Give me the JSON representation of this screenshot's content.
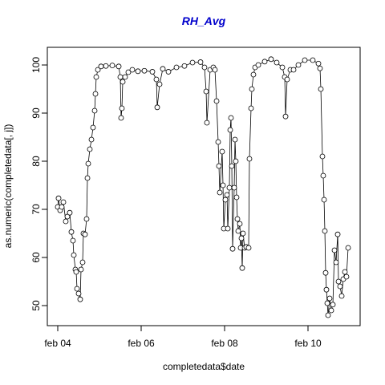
{
  "chart_data": {
    "type": "line",
    "title": "RH_Avg",
    "title_color": "#0000cc",
    "x_label": "completedata$date",
    "y_label": "as.numeric(completedata[, j])",
    "xlim": [
      3.75,
      11.25
    ],
    "ylim": [
      45.83,
      103.67
    ],
    "xticks": [
      {
        "value": 4,
        "label": "feb 04"
      },
      {
        "value": 6,
        "label": "feb 06"
      },
      {
        "value": 8,
        "label": "feb 08"
      },
      {
        "value": 10,
        "label": "feb 10"
      }
    ],
    "yticks": [
      50,
      60,
      70,
      80,
      90,
      100
    ],
    "color": "#000000",
    "x": [
      4.0,
      4.019,
      4.058,
      4.096,
      4.135,
      4.192,
      4.231,
      4.288,
      4.327,
      4.365,
      4.385,
      4.423,
      4.442,
      4.462,
      4.5,
      4.538,
      4.558,
      4.596,
      4.615,
      4.654,
      4.692,
      4.712,
      4.731,
      4.769,
      4.808,
      4.846,
      4.885,
      4.904,
      4.923,
      4.962,
      5.038,
      5.154,
      5.308,
      5.462,
      5.5,
      5.519,
      5.538,
      5.558,
      5.615,
      5.692,
      5.788,
      5.923,
      6.077,
      6.269,
      6.365,
      6.385,
      6.442,
      6.519,
      6.654,
      6.846,
      7.038,
      7.231,
      7.423,
      7.519,
      7.558,
      7.577,
      7.654,
      7.731,
      7.769,
      7.808,
      7.846,
      7.865,
      7.885,
      7.942,
      7.962,
      7.981,
      8.019,
      8.058,
      8.077,
      8.115,
      8.135,
      8.154,
      8.173,
      8.192,
      8.231,
      8.25,
      8.269,
      8.288,
      8.308,
      8.327,
      8.365,
      8.385,
      8.404,
      8.423,
      8.442,
      8.481,
      8.519,
      8.577,
      8.596,
      8.635,
      8.654,
      8.692,
      8.731,
      8.808,
      8.962,
      9.115,
      9.25,
      9.385,
      9.442,
      9.462,
      9.5,
      9.577,
      9.654,
      9.769,
      9.923,
      10.115,
      10.25,
      10.288,
      10.308,
      10.346,
      10.365,
      10.385,
      10.404,
      10.423,
      10.442,
      10.462,
      10.481,
      10.519,
      10.558,
      10.596,
      10.635,
      10.673,
      10.712,
      10.731,
      10.769,
      10.808,
      10.846,
      10.885,
      10.923,
      10.962
    ],
    "values": [
      70.5,
      72.3,
      69.8,
      70.5,
      71.5,
      67.5,
      68.5,
      69.3,
      65.3,
      63.5,
      60.5,
      57.5,
      57,
      53.5,
      52.5,
      51.3,
      57.5,
      59,
      65,
      64.8,
      68,
      76.5,
      79.5,
      82.5,
      84.5,
      87,
      90.5,
      94,
      97.5,
      99,
      99.7,
      99.8,
      99.9,
      99.7,
      97.5,
      89,
      91,
      96.5,
      97.5,
      98.5,
      99,
      98.7,
      98.8,
      98.6,
      97,
      91.2,
      96,
      99.2,
      98.6,
      99.5,
      99.8,
      100.5,
      100.6,
      99.5,
      94.5,
      88,
      99,
      99.5,
      99,
      92.5,
      84,
      79,
      73.5,
      82,
      75,
      66,
      72,
      73,
      66,
      74.5,
      86.5,
      89,
      79,
      61.8,
      74.5,
      84.5,
      80,
      72.5,
      68,
      65.5,
      67,
      62,
      64,
      57.8,
      65,
      62,
      62.2,
      62,
      80.5,
      91,
      95,
      98,
      99.5,
      100,
      100.7,
      101.2,
      100.5,
      99.5,
      97.5,
      89.3,
      97,
      99,
      99,
      100,
      101,
      101,
      100.3,
      99.3,
      95,
      81,
      77,
      72,
      65.5,
      56.8,
      53.3,
      50.5,
      48,
      51.5,
      49,
      50.2,
      61.5,
      59,
      64.8,
      55,
      54,
      52,
      55.5,
      57,
      56,
      62
    ]
  }
}
